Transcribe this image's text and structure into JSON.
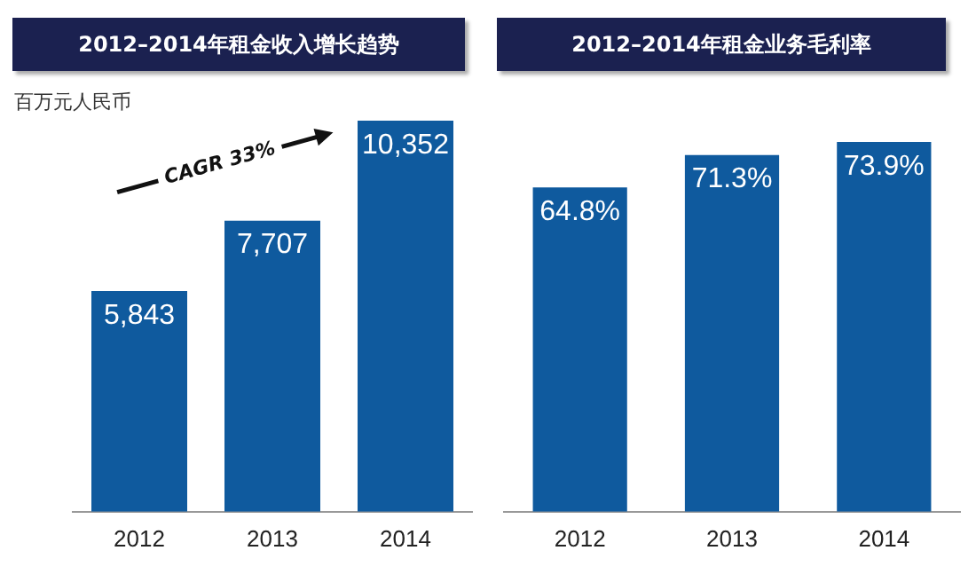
{
  "chart_data": [
    {
      "type": "bar",
      "title": "2012–2014年租金收入增长趋势",
      "ylabel": "百万元人民币",
      "categories": [
        "2012",
        "2013",
        "2014"
      ],
      "values": [
        5843,
        7707,
        10352
      ],
      "value_labels": [
        "5,843",
        "7,707",
        "10,352"
      ],
      "color": "#0f5a9e",
      "grid": false,
      "tick_labels": "x",
      "annotations": [
        "CAGR 33%"
      ]
    },
    {
      "type": "bar",
      "title": "2012–2014年租金业务毛利率",
      "categories": [
        "2012",
        "2013",
        "2014"
      ],
      "values": [
        64.8,
        71.3,
        73.9
      ],
      "value_labels": [
        "64.8%",
        "71.3%",
        "73.9%"
      ],
      "color": "#0f5a9e",
      "grid": false,
      "tick_labels": "x"
    }
  ]
}
